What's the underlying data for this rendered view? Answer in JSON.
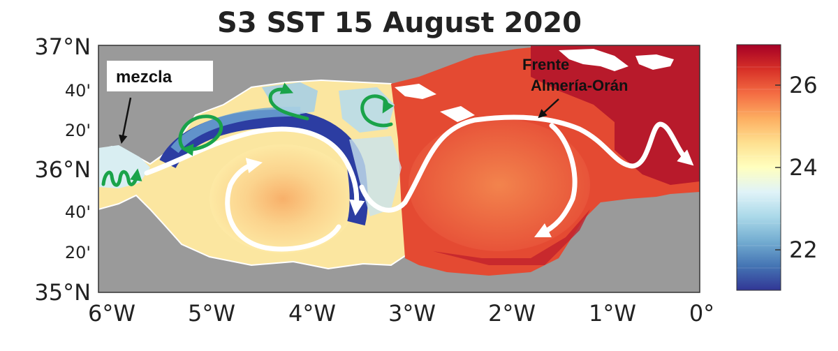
{
  "title": "S3 SST 15 August 2020",
  "lat_labels": {
    "l37": "37°N",
    "l40a": "40'",
    "l20a": "20'",
    "l36": "36°N",
    "l40b": "40'",
    "l20b": "20'",
    "l35": "35°N"
  },
  "lon_labels": [
    "6°W",
    "5°W",
    "4°W",
    "3°W",
    "2°W",
    "1°W",
    "0°"
  ],
  "colorbar": {
    "ticks": [
      "26",
      "24",
      "22"
    ],
    "range": [
      21,
      27
    ],
    "colors": [
      "#313695",
      "#4575b4",
      "#74add1",
      "#abd9e9",
      "#e0f3f8",
      "#ffffbf",
      "#fee090",
      "#fdae61",
      "#f46d43",
      "#d73027",
      "#a50026"
    ]
  },
  "annotations": {
    "mezcla": "mezcla",
    "frente_line1": "Frente",
    "frente_line2": "Almería-Orán"
  },
  "colors": {
    "land": "#9a9a9a",
    "current_arrow": "#ffffff",
    "eddy_arrow": "#1aa34a",
    "cloud": "#ffffff"
  }
}
